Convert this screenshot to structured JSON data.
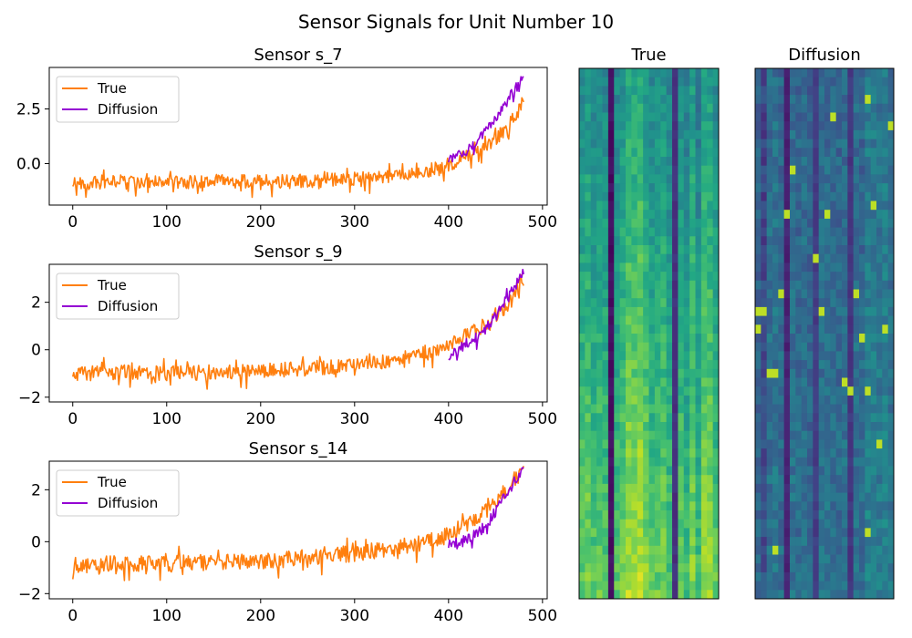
{
  "figure": {
    "title": "Sensor Signals for Unit Number 10"
  },
  "chart_data": [
    {
      "type": "line",
      "title": "Sensor s_7",
      "xlabel": "",
      "ylabel": "",
      "xlim": [
        -25,
        505
      ],
      "ylim": [
        -1.9,
        4.4
      ],
      "xticks": [
        0,
        100,
        200,
        300,
        400,
        500
      ],
      "yticks": [
        0.0,
        2.5
      ],
      "ytick_labels": [
        "0.0",
        "2.5"
      ],
      "grid": false,
      "legend": "top-left",
      "series": [
        {
          "name": "True",
          "color": "#ff7f0e",
          "x": [
            0,
            50,
            100,
            150,
            200,
            250,
            300,
            350,
            380,
            400,
            420,
            440,
            460,
            470,
            480
          ],
          "y": [
            -0.9,
            -0.8,
            -0.85,
            -0.8,
            -0.85,
            -0.8,
            -0.7,
            -0.5,
            -0.3,
            -0.05,
            0.35,
            0.8,
            1.5,
            2.1,
            2.9
          ]
        },
        {
          "name": "Diffusion",
          "color": "#9400d3",
          "x": [
            400,
            410,
            420,
            430,
            440,
            450,
            460,
            470,
            480
          ],
          "y": [
            0.15,
            0.4,
            0.7,
            1.0,
            1.5,
            2.0,
            2.7,
            3.4,
            4.1
          ]
        }
      ]
    },
    {
      "type": "line",
      "title": "Sensor s_9",
      "xlabel": "",
      "ylabel": "",
      "xlim": [
        -25,
        505
      ],
      "ylim": [
        -2.2,
        3.6
      ],
      "xticks": [
        0,
        100,
        200,
        300,
        400,
        500
      ],
      "yticks": [
        -2,
        0,
        2
      ],
      "ytick_labels": [
        "−2",
        "0",
        "2"
      ],
      "grid": false,
      "legend": "top-left",
      "series": [
        {
          "name": "True",
          "color": "#ff7f0e",
          "x": [
            0,
            50,
            100,
            150,
            200,
            250,
            300,
            350,
            380,
            400,
            420,
            440,
            460,
            470,
            480
          ],
          "y": [
            -1.0,
            -0.95,
            -1.0,
            -0.95,
            -0.9,
            -0.8,
            -0.65,
            -0.4,
            -0.1,
            0.2,
            0.6,
            1.1,
            1.8,
            2.4,
            3.1
          ]
        },
        {
          "name": "Diffusion",
          "color": "#9400d3",
          "x": [
            400,
            410,
            420,
            430,
            440,
            450,
            460,
            470,
            480
          ],
          "y": [
            -0.3,
            0.0,
            0.3,
            0.5,
            0.9,
            1.4,
            2.0,
            2.6,
            3.4
          ]
        }
      ]
    },
    {
      "type": "line",
      "title": "Sensor s_14",
      "xlabel": "",
      "ylabel": "",
      "xlim": [
        -25,
        505
      ],
      "ylim": [
        -2.2,
        3.1
      ],
      "xticks": [
        0,
        100,
        200,
        300,
        400,
        500
      ],
      "yticks": [
        -2,
        0,
        2
      ],
      "ytick_labels": [
        "−2",
        "0",
        "2"
      ],
      "grid": false,
      "legend": "top-left",
      "series": [
        {
          "name": "True",
          "color": "#ff7f0e",
          "x": [
            0,
            50,
            100,
            150,
            200,
            250,
            300,
            350,
            380,
            400,
            420,
            440,
            460,
            470,
            480
          ],
          "y": [
            -0.9,
            -0.85,
            -0.85,
            -0.8,
            -0.8,
            -0.6,
            -0.45,
            -0.2,
            0.0,
            0.25,
            0.7,
            1.2,
            1.9,
            2.4,
            2.8
          ]
        },
        {
          "name": "Diffusion",
          "color": "#9400d3",
          "x": [
            400,
            410,
            420,
            430,
            440,
            450,
            460,
            470,
            480
          ],
          "y": [
            -0.15,
            -0.05,
            0.1,
            0.3,
            0.6,
            1.2,
            1.8,
            2.3,
            2.7
          ]
        }
      ]
    },
    {
      "type": "heatmap",
      "title": "True",
      "colormap": "viridis",
      "rows": 60,
      "cols": 24,
      "column_means": [
        0.62,
        0.66,
        0.6,
        0.63,
        0.6,
        0.04,
        0.6,
        0.65,
        0.74,
        0.73,
        0.76,
        0.68,
        0.6,
        0.62,
        0.66,
        0.58,
        0.14,
        0.62,
        0.55,
        0.68,
        0.55,
        0.7,
        0.7,
        0.62
      ],
      "row_trend": 0.3
    },
    {
      "type": "heatmap",
      "title": "Diffusion",
      "colormap": "viridis",
      "rows": 60,
      "cols": 24,
      "column_means": [
        0.32,
        0.22,
        0.36,
        0.38,
        0.34,
        0.1,
        0.36,
        0.34,
        0.36,
        0.32,
        0.18,
        0.36,
        0.36,
        0.34,
        0.34,
        0.36,
        0.16,
        0.36,
        0.34,
        0.42,
        0.42,
        0.4,
        0.42,
        0.38
      ],
      "row_trend": 0.04
    }
  ]
}
